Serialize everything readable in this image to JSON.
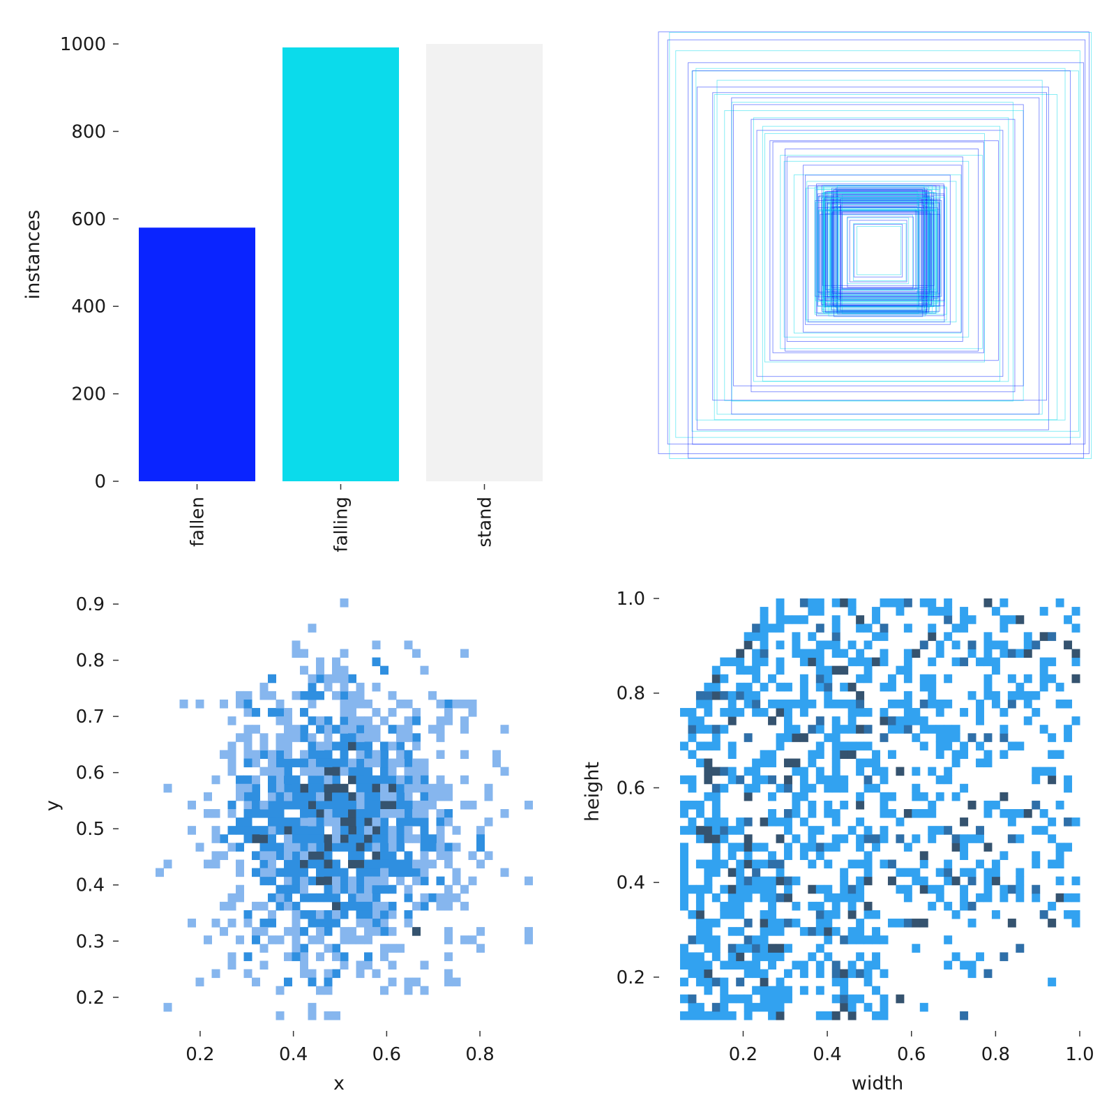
{
  "chart_data": [
    {
      "type": "bar",
      "categories": [
        "fallen",
        "falling",
        "stand"
      ],
      "values": [
        580,
        992,
        1000
      ],
      "colors": [
        "#0a24ff",
        "#0bdbeb",
        "#f2f2f2"
      ],
      "xlabel": "",
      "ylabel": "instances",
      "ylim": [
        0,
        1000
      ],
      "yticks": [
        "0",
        "200",
        "400",
        "600",
        "800",
        "1000"
      ],
      "grid": false
    },
    {
      "type": "scatter",
      "description_kind": "bounding-box-overlay",
      "colors": [
        "#0a24ff",
        "#0bdbeb"
      ],
      "boxes_wh": [
        [
          0.98,
          0.96
        ],
        [
          0.96,
          0.97
        ],
        [
          0.95,
          0.92
        ],
        [
          0.92,
          0.88
        ],
        [
          0.9,
          0.9
        ],
        [
          0.88,
          0.82
        ],
        [
          0.86,
          0.85
        ],
        [
          0.84,
          0.8
        ],
        [
          0.8,
          0.78
        ],
        [
          0.78,
          0.74
        ],
        [
          0.76,
          0.7
        ],
        [
          0.74,
          0.76
        ],
        [
          0.7,
          0.72
        ],
        [
          0.68,
          0.66
        ],
        [
          0.66,
          0.64
        ],
        [
          0.64,
          0.68
        ],
        [
          0.6,
          0.62
        ],
        [
          0.58,
          0.6
        ],
        [
          0.56,
          0.56
        ],
        [
          0.54,
          0.58
        ],
        [
          0.52,
          0.5
        ],
        [
          0.5,
          0.52
        ],
        [
          0.48,
          0.48
        ],
        [
          0.46,
          0.44
        ],
        [
          0.44,
          0.46
        ],
        [
          0.42,
          0.4
        ],
        [
          0.4,
          0.42
        ],
        [
          0.38,
          0.36
        ],
        [
          0.36,
          0.38
        ],
        [
          0.34,
          0.32
        ],
        [
          0.33,
          0.34
        ],
        [
          0.32,
          0.3
        ],
        [
          0.31,
          0.31
        ],
        [
          0.3,
          0.29
        ],
        [
          0.29,
          0.3
        ],
        [
          0.28,
          0.28
        ],
        [
          0.27,
          0.29
        ],
        [
          0.26,
          0.27
        ],
        [
          0.25,
          0.26
        ],
        [
          0.24,
          0.25
        ],
        [
          0.23,
          0.24
        ],
        [
          0.22,
          0.23
        ],
        [
          0.21,
          0.22
        ],
        [
          0.2,
          0.2
        ],
        [
          0.19,
          0.21
        ],
        [
          0.18,
          0.19
        ],
        [
          0.17,
          0.18
        ],
        [
          0.16,
          0.17
        ],
        [
          0.15,
          0.16
        ],
        [
          0.14,
          0.15
        ],
        [
          0.13,
          0.14
        ],
        [
          0.12,
          0.13
        ],
        [
          0.11,
          0.12
        ],
        [
          0.1,
          0.11
        ]
      ]
    },
    {
      "type": "heatmap",
      "xlabel": "x",
      "ylabel": "y",
      "xlim": [
        0.07,
        0.93
      ],
      "ylim": [
        0.16,
        0.91
      ],
      "xticks": [
        "0.2",
        "0.4",
        "0.6",
        "0.8"
      ],
      "yticks": [
        "0.2",
        "0.3",
        "0.4",
        "0.5",
        "0.6",
        "0.7",
        "0.8",
        "0.9"
      ],
      "center": [
        0.5,
        0.5
      ],
      "spread": [
        0.13,
        0.13
      ],
      "colors": [
        "#86b6ee",
        "#2f8fe0",
        "#35536f"
      ]
    },
    {
      "type": "heatmap",
      "xlabel": "width",
      "ylabel": "height",
      "xlim": [
        0.05,
        1.0
      ],
      "ylim": [
        0.11,
        1.0
      ],
      "xticks": [
        "0.2",
        "0.4",
        "0.6",
        "0.8",
        "1.0"
      ],
      "yticks": [
        "0.2",
        "0.4",
        "0.6",
        "0.8",
        "1.0"
      ],
      "colors": [
        "#32a2f0",
        "#2f6fa8",
        "#35536f"
      ]
    }
  ]
}
